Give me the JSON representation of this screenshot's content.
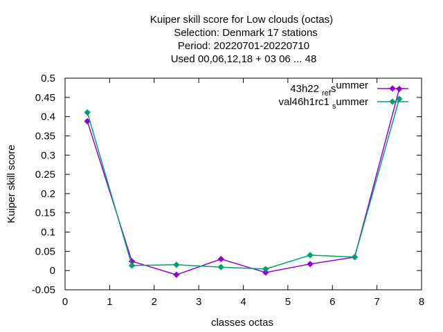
{
  "chart_data": {
    "type": "line",
    "title_lines": [
      "Kuiper skill score  for Low clouds (octas)",
      "Selection: Denmark      17 stations",
      "Period: 20220701-20220710",
      "Used  00,06,12,18  + 03 06 ... 48"
    ],
    "xlabel": "classes octas",
    "ylabel": "Kuiper skill score",
    "xlim": [
      0,
      8
    ],
    "ylim": [
      -0.05,
      0.5
    ],
    "xticks": [
      "0",
      "1",
      "2",
      "3",
      "4",
      "5",
      "6",
      "7",
      "8"
    ],
    "yticks": [
      "-0.05",
      "0",
      "0.05",
      "0.1",
      "0.15",
      "0.2",
      "0.25",
      "0.3",
      "0.35",
      "0.4",
      "0.45",
      "0.5"
    ],
    "grid": false,
    "legend_position": "top-right",
    "series": [
      {
        "legend": {
          "base": "43h22",
          "sub1": "ref",
          "mid": "s",
          "sub2": "",
          "tail": "ummer"
        },
        "color": "#9400d3",
        "x": [
          0.5,
          1.5,
          2.5,
          3.5,
          4.5,
          5.5,
          6.5,
          7.5
        ],
        "y": [
          0.388,
          0.024,
          -0.011,
          0.03,
          -0.005,
          0.017,
          0.035,
          0.472
        ]
      },
      {
        "legend": {
          "base": "val46h1rc1",
          "sub1": "s",
          "mid": "",
          "sub2": "",
          "tail": "ummer"
        },
        "color": "#009e73",
        "x": [
          0.5,
          1.5,
          2.5,
          3.5,
          4.5,
          5.5,
          6.5,
          7.5
        ],
        "y": [
          0.411,
          0.013,
          0.015,
          0.009,
          0.004,
          0.04,
          0.035,
          0.446
        ]
      }
    ]
  }
}
